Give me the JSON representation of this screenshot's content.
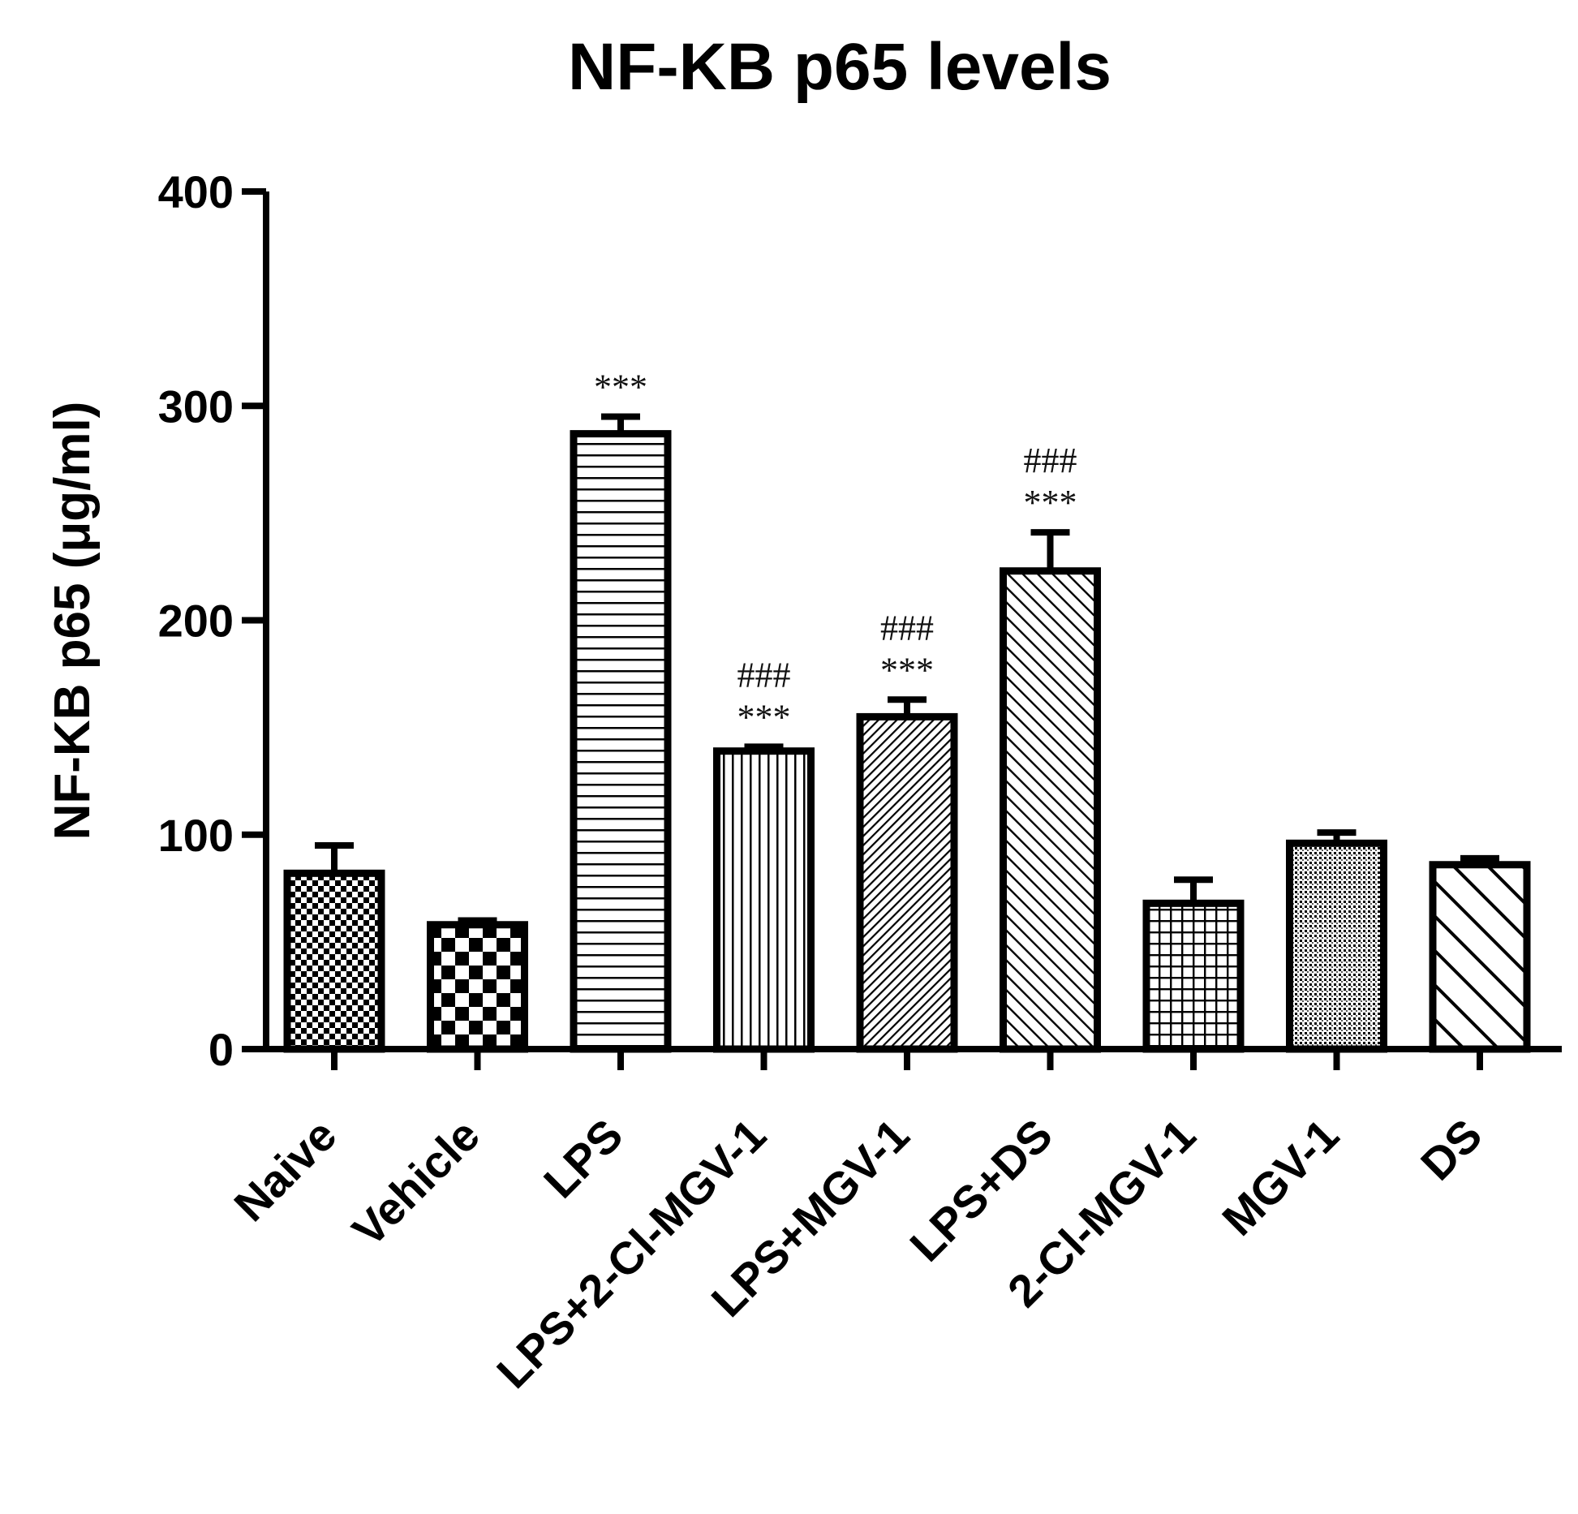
{
  "chart_data": {
    "type": "bar",
    "title": "NF-ΚB p65 levels",
    "xlabel": "",
    "ylabel": "NF-ΚB p65 (μg/ml)",
    "ylim": [
      0,
      400
    ],
    "yticks": [
      0,
      100,
      200,
      300,
      400
    ],
    "yticklabels": [
      "0",
      "100",
      "200",
      "300",
      "400"
    ],
    "categories": [
      "Naive",
      "Vehicle",
      "LPS",
      "LPS+2-Cl-MGV-1",
      "LPS+MGV-1",
      "LPS+DS",
      "2-Cl-MGV-1",
      "MGV-1",
      "DS"
    ],
    "values": [
      82,
      58,
      287,
      139,
      155,
      223,
      68,
      96,
      86
    ],
    "errors": [
      13,
      2,
      8,
      2,
      8,
      18,
      11,
      5,
      3
    ],
    "patterns": [
      "small-checker",
      "large-checker",
      "horizontal",
      "vertical",
      "dense-diagonal",
      "diagonal",
      "grid",
      "dots",
      "wide-diagonal"
    ],
    "annotations": [
      {
        "category": "LPS",
        "lines": [
          "***"
        ]
      },
      {
        "category": "LPS+2-Cl-MGV-1",
        "lines": [
          "###",
          "***"
        ]
      },
      {
        "category": "LPS+MGV-1",
        "lines": [
          "###",
          "***"
        ]
      },
      {
        "category": "LPS+DS",
        "lines": [
          "###",
          "***"
        ]
      }
    ],
    "grid": false,
    "legend": "none",
    "colors": {
      "bar_edge": "#000000",
      "pattern": "#000000",
      "background": "#ffffff",
      "annotation": "#111111"
    }
  }
}
